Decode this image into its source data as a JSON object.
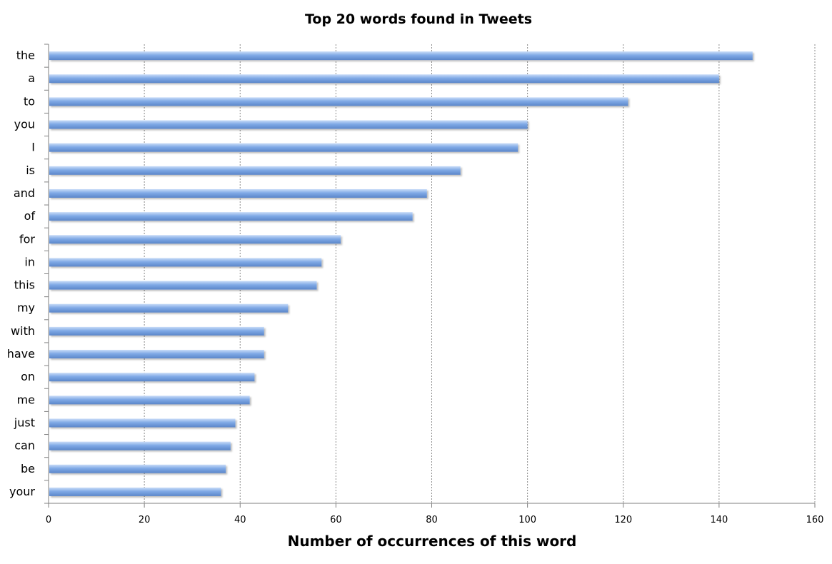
{
  "chart_data": {
    "type": "bar",
    "orientation": "horizontal",
    "title": "Top 20 words found in Tweets",
    "xlabel": "Number of occurrences of this word",
    "ylabel": "",
    "categories": [
      "the",
      "a",
      "to",
      "you",
      "I",
      "is",
      "and",
      "of",
      "for",
      "in",
      "this",
      "my",
      "with",
      "have",
      "on",
      "me",
      "just",
      "can",
      "be",
      "your"
    ],
    "values": [
      147,
      140,
      121,
      100,
      98,
      86,
      79,
      76,
      61,
      57,
      56,
      50,
      45,
      45,
      43,
      42,
      39,
      38,
      37,
      36
    ],
    "xlim": [
      0,
      160
    ],
    "xticks": [
      0,
      20,
      40,
      60,
      80,
      100,
      120,
      140,
      160
    ],
    "grid": "vertical dotted",
    "legend": "none",
    "bar_color": "#7fa9e6",
    "bar_highlight": "#c9dcf8",
    "bar_shadow": "#5b86c9"
  }
}
